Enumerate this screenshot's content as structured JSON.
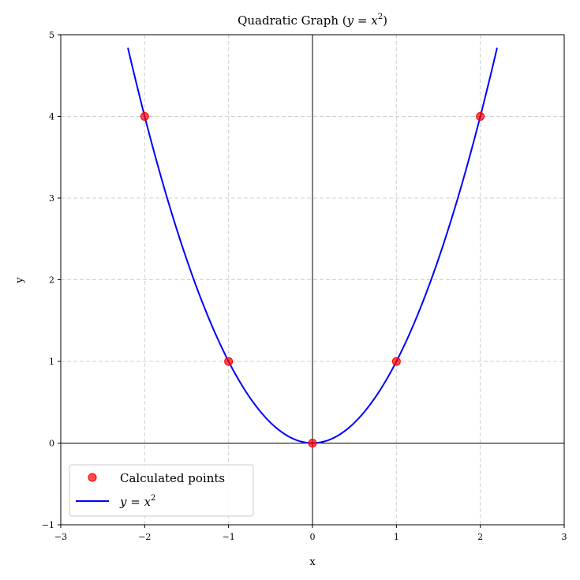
{
  "chart_data": {
    "type": "line",
    "title": "Quadratic Graph (y = x²)",
    "title_prefix": "Quadratic Graph (",
    "title_math": "y = x",
    "title_sup": "2",
    "title_suffix": ")",
    "xlabel": "x",
    "ylabel": "y",
    "xlim": [
      -3,
      3
    ],
    "ylim": [
      -1,
      5
    ],
    "xticks": [
      -3,
      -2,
      -1,
      0,
      1,
      2,
      3
    ],
    "yticks": [
      -1,
      0,
      1,
      2,
      3,
      4,
      5
    ],
    "xtick_labels": [
      "−3",
      "−2",
      "−1",
      "0",
      "1",
      "2",
      "3"
    ],
    "ytick_labels": [
      "−1",
      "0",
      "1",
      "2",
      "3",
      "4",
      "5"
    ],
    "grid": true,
    "reference_lines": {
      "x": 0,
      "y": 0
    },
    "series": [
      {
        "name": "Calculated points",
        "kind": "scatter",
        "color": "#ff0000",
        "x": [
          -2,
          -1,
          0,
          1,
          2
        ],
        "y": [
          4,
          1,
          0,
          1,
          4
        ]
      },
      {
        "name": "y = x²",
        "legend_math": "y = x",
        "legend_sup": "2",
        "kind": "line",
        "color": "#0000ff",
        "function": "x^2",
        "x_range": [
          -2.2,
          2.2
        ]
      }
    ],
    "legend_position": "lower-left"
  }
}
